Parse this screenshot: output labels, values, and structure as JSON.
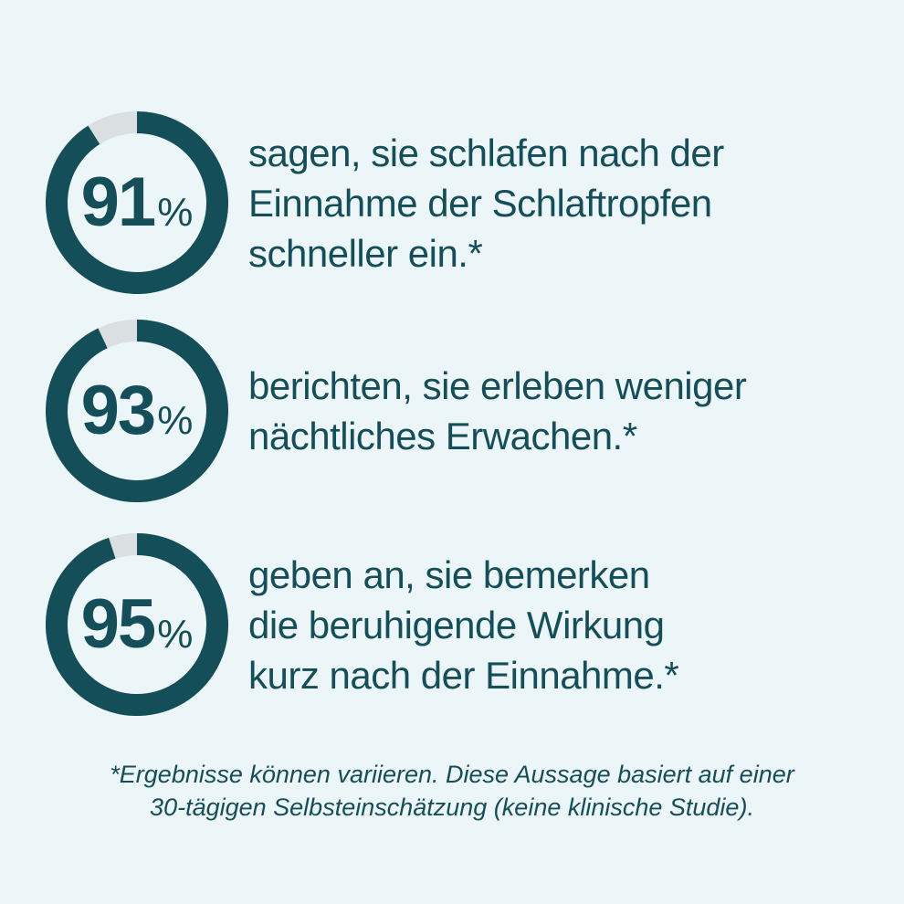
{
  "theme": {
    "background": "#ecf5f7",
    "accent_teal": "#144e58",
    "track_gray": "#dadfe1"
  },
  "stats": [
    {
      "value": "91",
      "unit": "%",
      "percent": 91,
      "lines": [
        "sagen, sie schlafen nach der",
        "Einnahme der Schlaftropfen",
        "schneller ein.*"
      ]
    },
    {
      "value": "93",
      "unit": "%",
      "percent": 93,
      "lines": [
        "berichten, sie erleben weniger",
        "nächtliches Erwachen.*"
      ]
    },
    {
      "value": "95",
      "unit": "%",
      "percent": 95,
      "lines": [
        "geben an, sie bemerken",
        "die beruhigende Wirkung",
        "kurz nach der Einnahme.*"
      ]
    }
  ],
  "footnote": {
    "lines": [
      "*Ergebnisse können variieren. Diese Aussage basiert auf einer",
      "30-tägigen Selbsteinschätzung (keine klinische Studie)."
    ]
  },
  "chart_data": [
    {
      "type": "pie",
      "subtype": "donut_progress_ring",
      "value": 91,
      "remainder": 9,
      "unit": "%",
      "label": "sagen, sie schlafen nach der Einnahme der Schlaftropfen schneller ein.*",
      "colors": {
        "filled": "#144e58",
        "empty": "#dadfe1"
      },
      "start_angle": "top",
      "direction": "clockwise",
      "gap_position": "counterclockwise_of_top",
      "center_text": "91%"
    },
    {
      "type": "pie",
      "subtype": "donut_progress_ring",
      "value": 93,
      "remainder": 7,
      "unit": "%",
      "label": "berichten, sie erleben weniger nächtliches Erwachen.*",
      "colors": {
        "filled": "#144e58",
        "empty": "#dadfe1"
      },
      "start_angle": "top",
      "direction": "clockwise",
      "gap_position": "counterclockwise_of_top",
      "center_text": "93%"
    },
    {
      "type": "pie",
      "subtype": "donut_progress_ring",
      "value": 95,
      "remainder": 5,
      "unit": "%",
      "label": "geben an, sie bemerken die beruhigende Wirkung kurz nach der Einnahme.*",
      "colors": {
        "filled": "#144e58",
        "empty": "#dadfe1"
      },
      "start_angle": "top",
      "direction": "clockwise",
      "gap_position": "counterclockwise_of_top",
      "center_text": "95%",
      "footnote": "*Ergebnisse können variieren. Diese Aussage basiert auf einer 30-tägigen Selbsteinschätzung (keine klinische Studie)."
    }
  ]
}
